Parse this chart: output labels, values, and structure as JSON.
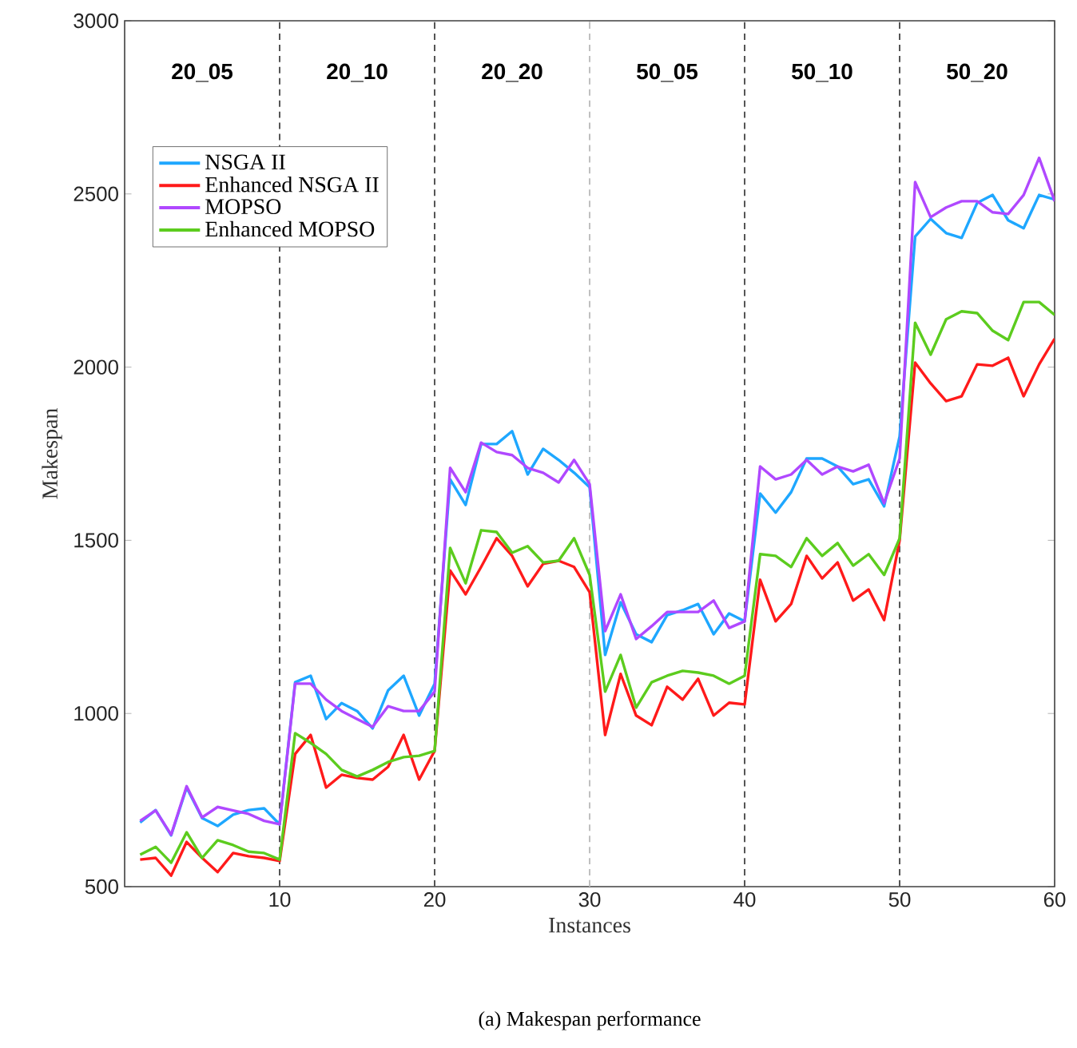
{
  "chart_data": {
    "type": "line",
    "xlabel": "Instances",
    "ylabel": "Makespan",
    "x": [
      1,
      2,
      3,
      4,
      5,
      6,
      7,
      8,
      9,
      10,
      11,
      12,
      13,
      14,
      15,
      16,
      17,
      18,
      19,
      20,
      21,
      22,
      23,
      24,
      25,
      26,
      27,
      28,
      29,
      30,
      31,
      32,
      33,
      34,
      35,
      36,
      37,
      38,
      39,
      40,
      41,
      42,
      43,
      44,
      45,
      46,
      47,
      48,
      49,
      50,
      51,
      52,
      53,
      54,
      55,
      56,
      57,
      58,
      59,
      60
    ],
    "xlim": [
      0,
      60
    ],
    "xticks": [
      10,
      20,
      30,
      40,
      50,
      60
    ],
    "ylim": [
      500,
      3000
    ],
    "yticks": [
      500,
      1000,
      1500,
      2000,
      2500,
      3000
    ],
    "legend": "top left",
    "grid": false,
    "series": [
      {
        "name": "NSGA II",
        "color": "#1ea7ff",
        "values": [
          685,
          721,
          648,
          786,
          698,
          675,
          708,
          721,
          726,
          680,
          1090,
          1109,
          984,
          1030,
          1007,
          957,
          1067,
          1109,
          994,
          1086,
          1676,
          1602,
          1778,
          1778,
          1815,
          1690,
          1764,
          1732,
          1695,
          1653,
          1169,
          1321,
          1229,
          1206,
          1284,
          1298,
          1316,
          1229,
          1289,
          1266,
          1635,
          1580,
          1639,
          1736,
          1736,
          1713,
          1662,
          1676,
          1598,
          1800,
          2377,
          2428,
          2387,
          2373,
          2474,
          2497,
          2424,
          2401,
          2497,
          2484
        ]
      },
      {
        "name": "Enhanced NSGA II",
        "color": "#ff1a1a",
        "values": [
          578,
          583,
          532,
          629,
          583,
          542,
          597,
          588,
          583,
          574,
          883,
          938,
          786,
          823,
          814,
          809,
          846,
          938,
          809,
          892,
          1413,
          1344,
          1423,
          1506,
          1455,
          1367,
          1432,
          1441,
          1423,
          1350,
          938,
          1114,
          994,
          966,
          1077,
          1040,
          1100,
          994,
          1031,
          1026,
          1386,
          1266,
          1316,
          1455,
          1390,
          1436,
          1326,
          1358,
          1270,
          1500,
          2013,
          1953,
          1902,
          1916,
          2008,
          2004,
          2027,
          1916,
          2008,
          2082
        ]
      },
      {
        "name": "MOPSO",
        "color": "#b048ff",
        "values": [
          690,
          720,
          650,
          790,
          700,
          730,
          720,
          710,
          690,
          680,
          1086,
          1086,
          1040,
          1007,
          984,
          961,
          1021,
          1007,
          1007,
          1063,
          1709,
          1639,
          1782,
          1755,
          1746,
          1709,
          1695,
          1667,
          1732,
          1662,
          1238,
          1344,
          1215,
          1252,
          1293,
          1293,
          1293,
          1326,
          1247,
          1266,
          1713,
          1676,
          1690,
          1732,
          1690,
          1713,
          1699,
          1718,
          1607,
          1736,
          2534,
          2433,
          2461,
          2479,
          2479,
          2447,
          2442,
          2497,
          2604,
          2479
        ]
      },
      {
        "name": "Enhanced MOPSO",
        "color": "#5ccc1e",
        "values": [
          592,
          615,
          569,
          657,
          583,
          634,
          620,
          601,
          597,
          578,
          943,
          915,
          883,
          837,
          818,
          837,
          860,
          874,
          878,
          892,
          1478,
          1376,
          1529,
          1524,
          1464,
          1483,
          1436,
          1441,
          1506,
          1400,
          1063,
          1169,
          1017,
          1090,
          1109,
          1123,
          1118,
          1109,
          1086,
          1109,
          1460,
          1455,
          1423,
          1506,
          1455,
          1492,
          1427,
          1460,
          1400,
          1506,
          2128,
          2036,
          2138,
          2161,
          2156,
          2105,
          2078,
          2188,
          2188,
          2151
        ]
      }
    ],
    "ref_lines": [
      {
        "axis": "x",
        "value": 10,
        "color": "#555555",
        "line_style": "dashed"
      },
      {
        "axis": "x",
        "value": 20,
        "color": "#555555",
        "line_style": "dashed"
      },
      {
        "axis": "x",
        "value": 30,
        "color": "#c0c0c0",
        "line_style": "dashed"
      },
      {
        "axis": "x",
        "value": 40,
        "color": "#555555",
        "line_style": "dashed"
      },
      {
        "axis": "x",
        "value": 50,
        "color": "#555555",
        "line_style": "dashed"
      }
    ],
    "annotations": [
      "20_05",
      "20_10",
      "20_20",
      "50_05",
      "50_10",
      "50_20",
      "(a) Makespan performance"
    ]
  }
}
